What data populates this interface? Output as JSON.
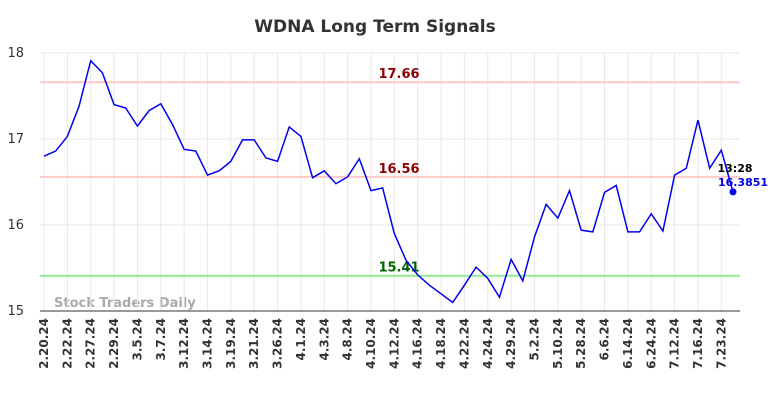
{
  "chart_data": {
    "type": "line",
    "title": "WDNA Long Term Signals",
    "categories": [
      "2.20.24",
      null,
      "2.22.24",
      null,
      "2.27.24",
      null,
      "2.29.24",
      null,
      "3.5.24",
      null,
      "3.7.24",
      null,
      "3.12.24",
      null,
      "3.14.24",
      null,
      "3.19.24",
      null,
      "3.21.24",
      null,
      "3.26.24",
      null,
      "4.1.24",
      null,
      "4.3.24",
      null,
      "4.8.24",
      null,
      "4.10.24",
      null,
      "4.12.24",
      null,
      "4.16.24",
      null,
      "4.18.24",
      null,
      "4.22.24",
      null,
      "4.24.24",
      null,
      "4.29.24",
      null,
      "5.2.24",
      null,
      "5.10.24",
      null,
      "5.28.24",
      null,
      "6.6.24",
      null,
      "6.14.24",
      null,
      "6.24.24",
      null,
      "7.12.24",
      null,
      "7.16.24",
      null,
      "7.23.24",
      null
    ],
    "series": [
      {
        "name": "WDNA",
        "color": "#0000ee",
        "values": [
          16.8,
          16.86,
          17.03,
          17.38,
          17.91,
          17.77,
          17.4,
          17.36,
          17.15,
          17.33,
          17.41,
          17.17,
          16.88,
          16.86,
          16.58,
          16.63,
          16.74,
          16.99,
          16.99,
          16.78,
          16.74,
          17.14,
          17.03,
          16.55,
          16.63,
          16.48,
          16.56,
          16.77,
          16.4,
          16.43,
          15.9,
          15.59,
          15.42,
          15.3,
          15.2,
          15.1,
          15.3,
          15.51,
          15.38,
          15.16,
          15.6,
          15.35,
          15.86,
          16.24,
          16.08,
          16.4,
          15.94,
          15.92,
          16.38,
          16.46,
          15.92,
          15.92,
          16.13,
          15.93,
          16.58,
          16.66,
          17.22,
          16.66,
          16.87,
          16.3851
        ]
      }
    ],
    "hlines": [
      {
        "value": 17.66,
        "color": "#ffc8c8",
        "label_color": "#8b0000"
      },
      {
        "value": 16.56,
        "color": "#ffc8c8",
        "label_color": "#8b0000"
      },
      {
        "value": 15.41,
        "color": "#90ee90",
        "label_color": "#006400"
      }
    ],
    "last_time": "13:28",
    "watermark": "Stock Traders Daily",
    "ylim": [
      15,
      18
    ],
    "yticks": [
      15,
      16,
      17,
      18
    ],
    "grid": true
  }
}
